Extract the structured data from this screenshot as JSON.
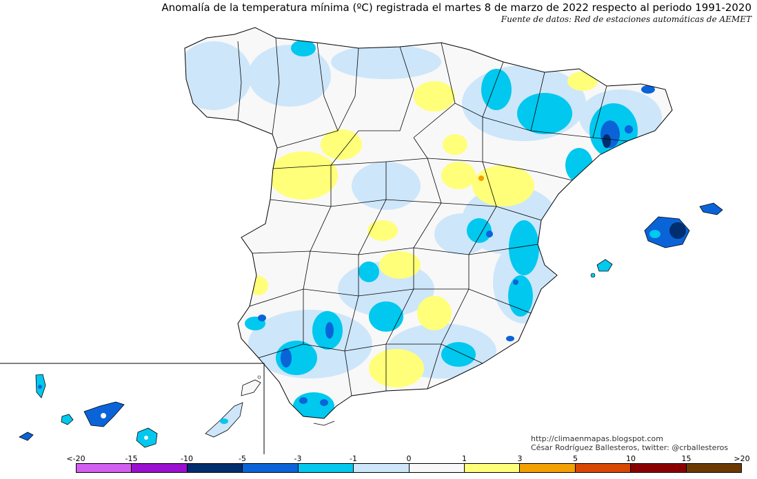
{
  "title": "Anomalía de la temperatura mínima (ºC) registrada el martes 8 de marzo de 2022 respecto al periodo 1991-2020",
  "subtitle": "Fuente de datos: Red de estaciones automáticas de AEMET",
  "credits": {
    "url": "http://climaenmapas.blogspot.com",
    "author": "César Rodríguez Ballesteros, twitter: @crballesteros"
  },
  "legend": {
    "labels": [
      "<-20",
      "-15",
      "-10",
      "-5",
      "-3",
      "-1",
      "0",
      "1",
      "3",
      "5",
      "10",
      "15",
      ">20"
    ],
    "colors": [
      "#d25ff0",
      "#9b0fd0",
      "#002e6e",
      "#0a64d8",
      "#00c8ee",
      "#cde6fa",
      "#f8f8f8",
      "#ffff7a",
      "#f4a000",
      "#d84800",
      "#8a0000",
      "#6a3a00"
    ]
  },
  "map": {
    "colors": {
      "neutral": "#f8f8f8",
      "light_blue": "#cde6fa",
      "cyan": "#00c8ee",
      "blue": "#0a64d8",
      "dark_blue": "#002e6e",
      "yellow": "#ffff7a",
      "orange": "#f4a000",
      "border": "#000000"
    }
  }
}
